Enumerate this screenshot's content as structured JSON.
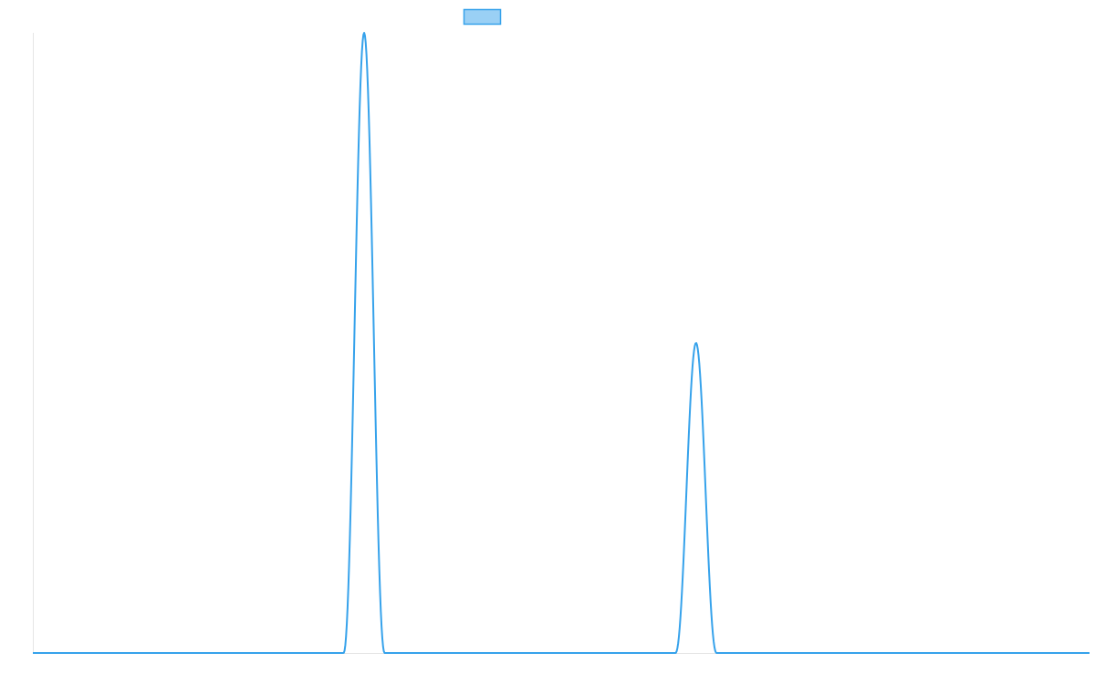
{
  "chart_data": {
    "type": "line",
    "title": "",
    "xlabel": "",
    "ylabel": "",
    "legend": {
      "placement": "top-center",
      "entries": [
        {
          "label": ""
        }
      ]
    },
    "grid": false,
    "xlim": [
      0,
      1
    ],
    "ylim": [
      0,
      1
    ],
    "series": [
      {
        "color": "#36a2eb",
        "fill_color": "#9ad0f5",
        "shape": "gaussian-peaks",
        "baseline": 0,
        "peaks": [
          {
            "center": 0.3135,
            "height": 1.0,
            "halfwidth": 0.0195
          },
          {
            "center": 0.6276,
            "height": 0.5,
            "halfwidth": 0.0195
          }
        ]
      }
    ]
  },
  "colors": {
    "axis": "#e5e5e5",
    "line": "#36a2eb",
    "legend_fill": "#9ad0f5"
  }
}
